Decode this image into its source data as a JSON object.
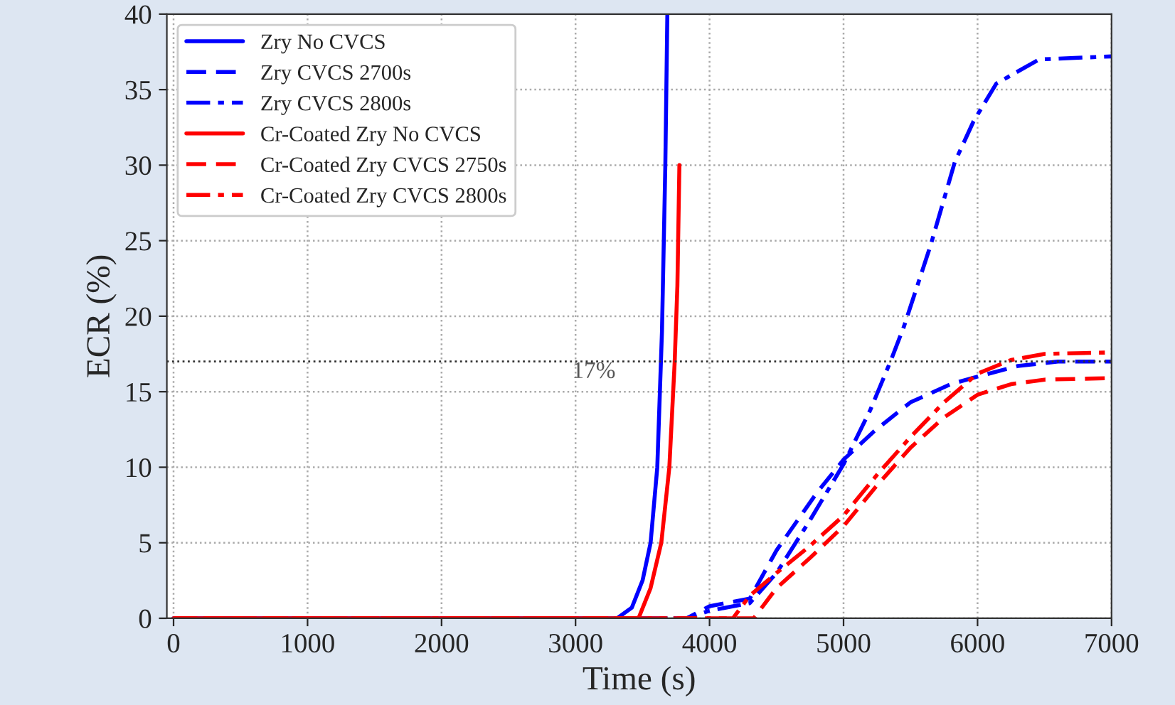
{
  "chart_data": {
    "type": "line",
    "xlabel": "Time (s)",
    "ylabel": "ECR (%)",
    "xlim": [
      -50,
      7000
    ],
    "ylim": [
      0,
      40
    ],
    "xticks": [
      0,
      1000,
      2000,
      3000,
      4000,
      5000,
      6000,
      7000
    ],
    "yticks": [
      0,
      5,
      10,
      15,
      20,
      25,
      30,
      35,
      40
    ],
    "grid": true,
    "legend": "top left",
    "series": [
      {
        "name": "Zry No CVCS",
        "color": "#0000ff",
        "line_style": "solid",
        "x": [
          0,
          3310,
          3420,
          3500,
          3560,
          3610,
          3645,
          3670,
          3685
        ],
        "values": [
          0,
          0,
          0.7,
          2.5,
          5,
          10,
          19,
          30,
          40
        ]
      },
      {
        "name": "Zry CVCS 2700s",
        "color": "#0000ff",
        "line_style": "dashed",
        "x": [
          0,
          3830,
          4000,
          4300,
          4500,
          4800,
          5000,
          5230,
          5500,
          5800,
          6000,
          6300,
          6600,
          7000
        ],
        "values": [
          0,
          0,
          0.8,
          1.3,
          4.5,
          8.3,
          10.5,
          12.4,
          14.3,
          15.5,
          16.0,
          16.7,
          17.0,
          17.0
        ]
      },
      {
        "name": "Zry CVCS 2800s",
        "color": "#0000ff",
        "line_style": "dashdot",
        "x": [
          0,
          3830,
          4000,
          4300,
          4500,
          4750,
          5000,
          5200,
          5350,
          5450,
          5650,
          5830,
          5970,
          6140,
          6460,
          7000
        ],
        "values": [
          0,
          0,
          0.5,
          1.0,
          3.0,
          6.5,
          10.2,
          13.8,
          17,
          19.3,
          24.7,
          30.2,
          32.9,
          35.4,
          37.0,
          37.2
        ]
      },
      {
        "name": "Cr-Coated Zry No CVCS",
        "color": "#ff0000",
        "line_style": "solid",
        "x": [
          0,
          3470,
          3560,
          3640,
          3700,
          3740,
          3760,
          3775
        ],
        "values": [
          0,
          0,
          2,
          5,
          10,
          17,
          22,
          30
        ]
      },
      {
        "name": "Cr-Coated Zry CVCS 2750s",
        "color": "#ff0000",
        "line_style": "dashed",
        "x": [
          0,
          4330,
          4500,
          4750,
          5000,
          5250,
          5500,
          5750,
          6000,
          6250,
          6500,
          7000
        ],
        "values": [
          0,
          0,
          2.0,
          4.0,
          6.1,
          8.8,
          11.3,
          13.3,
          14.8,
          15.5,
          15.8,
          15.9
        ]
      },
      {
        "name": "Cr-Coated Zry CVCS 2800s",
        "color": "#ff0000",
        "line_style": "dashdot",
        "x": [
          0,
          4175,
          4300,
          4500,
          4750,
          5000,
          5250,
          5500,
          5750,
          6000,
          6250,
          6500,
          7000
        ],
        "values": [
          0,
          0,
          1.5,
          3.0,
          4.8,
          6.8,
          9.5,
          12.0,
          14.3,
          16.2,
          17.1,
          17.5,
          17.6
        ]
      }
    ],
    "ref_lines": [
      {
        "axis": "y",
        "value": 17,
        "color": "#333333",
        "line_style": "dotted",
        "label": "17%"
      }
    ]
  }
}
